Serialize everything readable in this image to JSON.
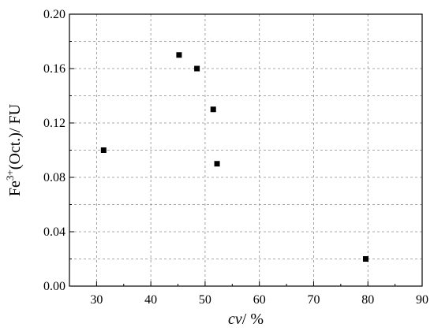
{
  "chart_data": {
    "type": "scatter",
    "title": "",
    "xlabel": {
      "main": "cv",
      "suffix": "/ %"
    },
    "ylabel": {
      "base": "Fe",
      "superscript": "3+",
      "suffix": "(Oct.)/ FU"
    },
    "xlim": [
      25,
      90
    ],
    "ylim": [
      0.0,
      0.2
    ],
    "xticks": [
      30,
      40,
      50,
      60,
      70,
      80,
      90
    ],
    "yticks": [
      0.0,
      0.04,
      0.08,
      0.12,
      0.16,
      0.2
    ],
    "xtick_labels": [
      "30",
      "40",
      "50",
      "60",
      "70",
      "80",
      "90"
    ],
    "ytick_labels": [
      "0.00",
      "0.04",
      "0.08",
      "0.12",
      "0.16",
      "0.20"
    ],
    "grid": true,
    "legend": "none",
    "marker": "square",
    "series": [
      {
        "points": [
          {
            "x": 31.3,
            "y": 0.1
          },
          {
            "x": 45.2,
            "y": 0.17
          },
          {
            "x": 48.5,
            "y": 0.16
          },
          {
            "x": 51.5,
            "y": 0.13
          },
          {
            "x": 52.2,
            "y": 0.09
          },
          {
            "x": 79.6,
            "y": 0.02
          }
        ]
      }
    ]
  },
  "colors": {
    "marker": "#000000",
    "axis": "#000000",
    "grid": "#8c8c8c"
  }
}
